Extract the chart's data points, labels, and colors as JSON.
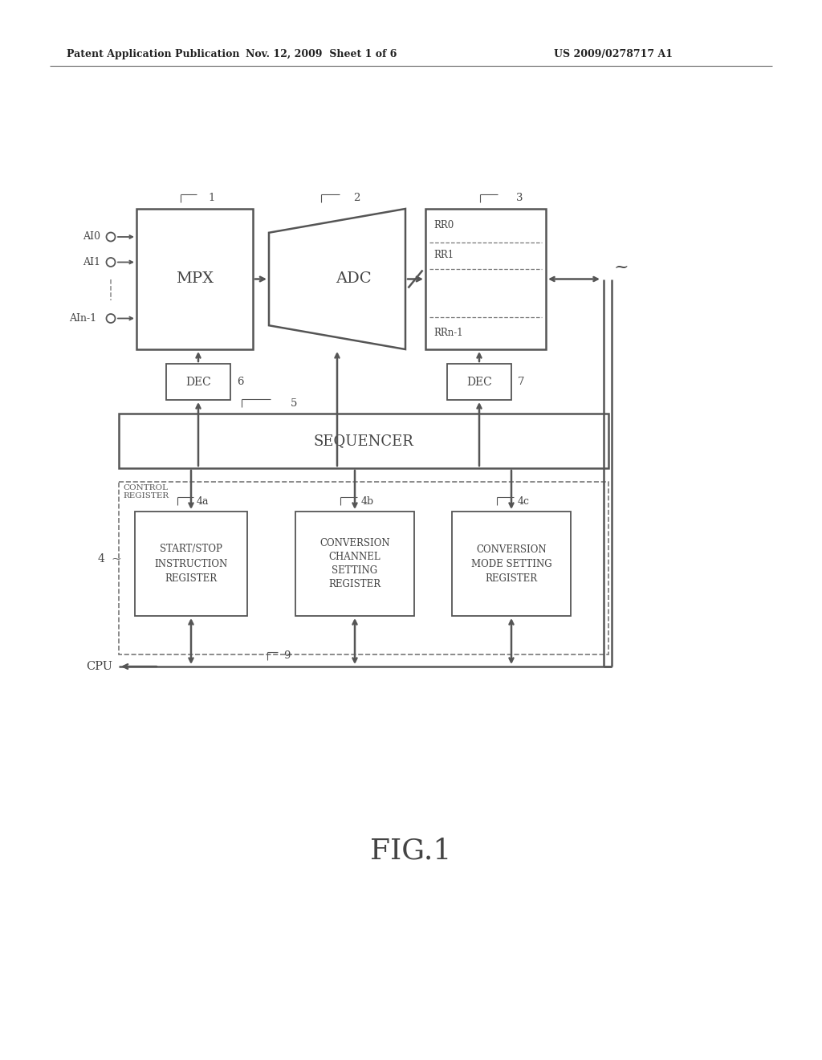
{
  "bg": "#ffffff",
  "gray": "#555555",
  "dgray": "#444444",
  "header_left": "Patent Application Publication",
  "header_mid": "Nov. 12, 2009  Sheet 1 of 6",
  "header_right": "US 2009/0278717 A1",
  "fig_label": "FIG.1",
  "lw": 1.3,
  "lw_thick": 1.8
}
